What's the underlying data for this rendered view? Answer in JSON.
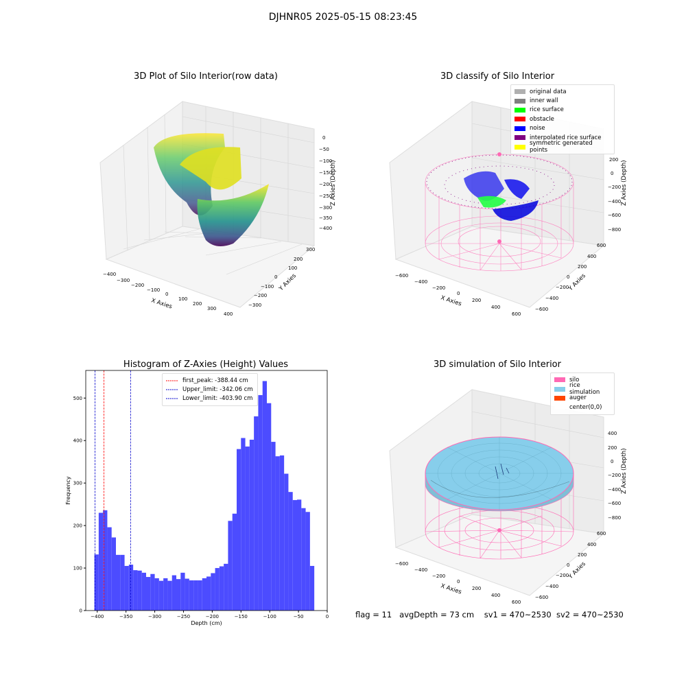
{
  "suptitle": "DJHNR05 2025-05-15 08:23:45",
  "plot1": {
    "title": "3D Plot of Silo Interior(row data)",
    "xlabel": "X Axies",
    "ylabel": "Y Axies",
    "zlabel": "Z Axies (Depth)",
    "xticks": [
      "−400",
      "−300",
      "−200",
      "−100",
      "0",
      "100",
      "200",
      "300",
      "400"
    ],
    "yticks": [
      "−300",
      "−200",
      "−100",
      "0",
      "100",
      "200",
      "300"
    ],
    "zticks": [
      "0",
      "−50",
      "−100",
      "−150",
      "−200",
      "−250",
      "−300",
      "−350",
      "−400"
    ]
  },
  "plot2": {
    "title": "3D classify of Silo Interior",
    "xlabel": "X Axies",
    "ylabel": "Y Axies",
    "zlabel": "Z Axies (Depth)",
    "xticks": [
      "−600",
      "−400",
      "−200",
      "0",
      "200",
      "400",
      "600"
    ],
    "yticks": [
      "−600",
      "−400",
      "−200",
      "0",
      "200",
      "400",
      "600"
    ],
    "zticks": [
      "200",
      "0",
      "−200",
      "−400",
      "−600",
      "−800"
    ],
    "legend": [
      {
        "label": "original data",
        "color": "#b0b0b0"
      },
      {
        "label": "inner wall",
        "color": "#808080"
      },
      {
        "label": "rice surface",
        "color": "#00ff00"
      },
      {
        "label": "obstacle",
        "color": "#ff0000"
      },
      {
        "label": "noise",
        "color": "#0000ff"
      },
      {
        "label": "interpolated rice surface",
        "color": "#800080"
      },
      {
        "label": "symmetric generated points",
        "color": "#ffff00"
      }
    ]
  },
  "plot4": {
    "title": "3D simulation of Silo Interior",
    "xlabel": "X Axies",
    "ylabel": "Y Axies",
    "zlabel": "Z Axies (Depth)",
    "xticks": [
      "−600",
      "−400",
      "−200",
      "0",
      "200",
      "400",
      "600"
    ],
    "yticks": [
      "−600",
      "−400",
      "−200",
      "0",
      "200",
      "400",
      "600"
    ],
    "zticks": [
      "400",
      "200",
      "0",
      "−200",
      "−400",
      "−600",
      "−800"
    ],
    "legend": [
      {
        "label": "silo",
        "color": "#ff69b4"
      },
      {
        "label": "rice simulation",
        "color": "#87ceeb"
      },
      {
        "label": "auger",
        "color": "#ff4500"
      },
      {
        "label": "center(0,0)",
        "color": "#ffffff"
      }
    ]
  },
  "footer": {
    "flag": "flag = 11",
    "avgdepth": "avgDepth = 73 cm",
    "sv1": "sv1 = 470~2530",
    "sv2": "sv2 = 470~2530"
  },
  "chart_data": [
    {
      "type": "bar",
      "title": "Histogram of Z-Axies (Height) Values",
      "xlabel": "Depth (cm)",
      "ylabel": "Frequency",
      "xlim": [
        -420,
        0
      ],
      "ylim": [
        0,
        565
      ],
      "xticks": [
        -400,
        -350,
        -300,
        -250,
        -200,
        -150,
        -100,
        -50,
        0
      ],
      "yticks": [
        0,
        100,
        200,
        300,
        400,
        500
      ],
      "bin_start": -405,
      "bin_width": 7.5,
      "values": [
        132,
        230,
        236,
        196,
        172,
        131,
        131,
        105,
        108,
        95,
        94,
        89,
        79,
        86,
        76,
        70,
        76,
        70,
        83,
        74,
        89,
        75,
        71,
        71,
        71,
        76,
        80,
        88,
        100,
        104,
        110,
        211,
        228,
        380,
        406,
        386,
        402,
        457,
        507,
        540,
        488,
        397,
        363,
        365,
        322,
        279,
        260,
        261,
        241,
        232,
        105
      ],
      "color": "#4c4cff",
      "lines": [
        {
          "label": "first_peak: -388.44 cm",
          "x": -388.44,
          "color": "#ff0000"
        },
        {
          "label": "Upper_limit: -342.06 cm",
          "x": -342.06,
          "color": "#0000cc"
        },
        {
          "label": "Lower_limit: -403.90 cm",
          "x": -403.9,
          "color": "#0000cc"
        }
      ],
      "legend_position": "top-center"
    }
  ]
}
